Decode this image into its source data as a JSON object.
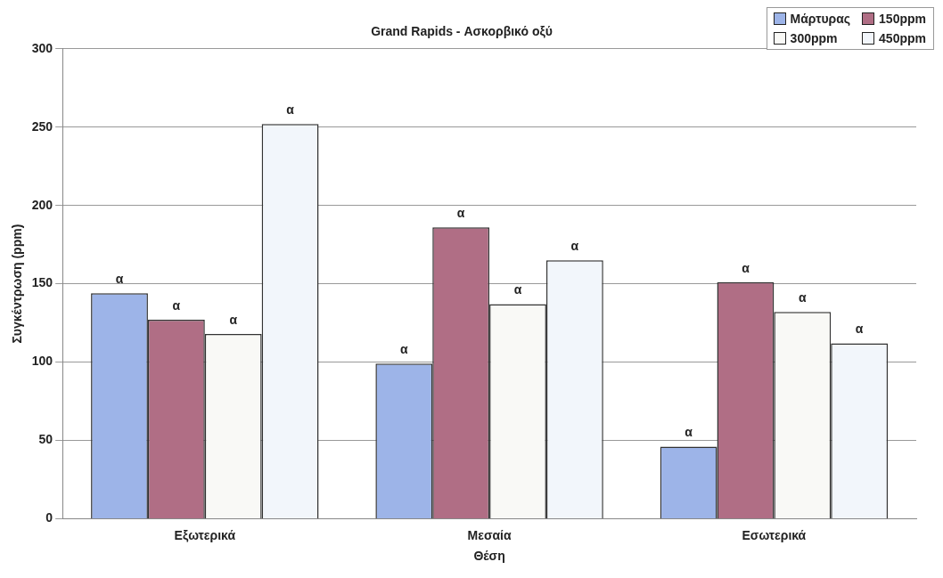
{
  "chart_data": {
    "type": "bar",
    "title": "Grand Rapids - Ασκορβικό οξύ",
    "xlabel": "Θέση",
    "ylabel": "Συγκέντρωση (ppm)",
    "categories": [
      "Εξωτερικά",
      "Μεσαία",
      "Εσωτερικά"
    ],
    "series": [
      {
        "name": "Μάρτυρας",
        "color": "#9db4e8",
        "values": [
          144,
          99,
          46
        ],
        "value_labels": [
          "α",
          "α",
          "α"
        ]
      },
      {
        "name": "150ppm",
        "color": "#b06e85",
        "values": [
          127,
          186,
          151
        ],
        "value_labels": [
          "α",
          "α",
          "α"
        ]
      },
      {
        "name": "300ppm",
        "color": "#f9f9f6",
        "values": [
          118,
          137,
          132
        ],
        "value_labels": [
          "α",
          "α",
          "α"
        ]
      },
      {
        "name": "450ppm",
        "color": "#f2f6fb",
        "values": [
          252,
          165,
          112
        ],
        "value_labels": [
          "α",
          "α",
          "α"
        ]
      }
    ],
    "ylim": [
      0,
      300
    ],
    "yticks": [
      0,
      50,
      100,
      150,
      200,
      250,
      300
    ],
    "grid": "y",
    "legend": "top right"
  }
}
